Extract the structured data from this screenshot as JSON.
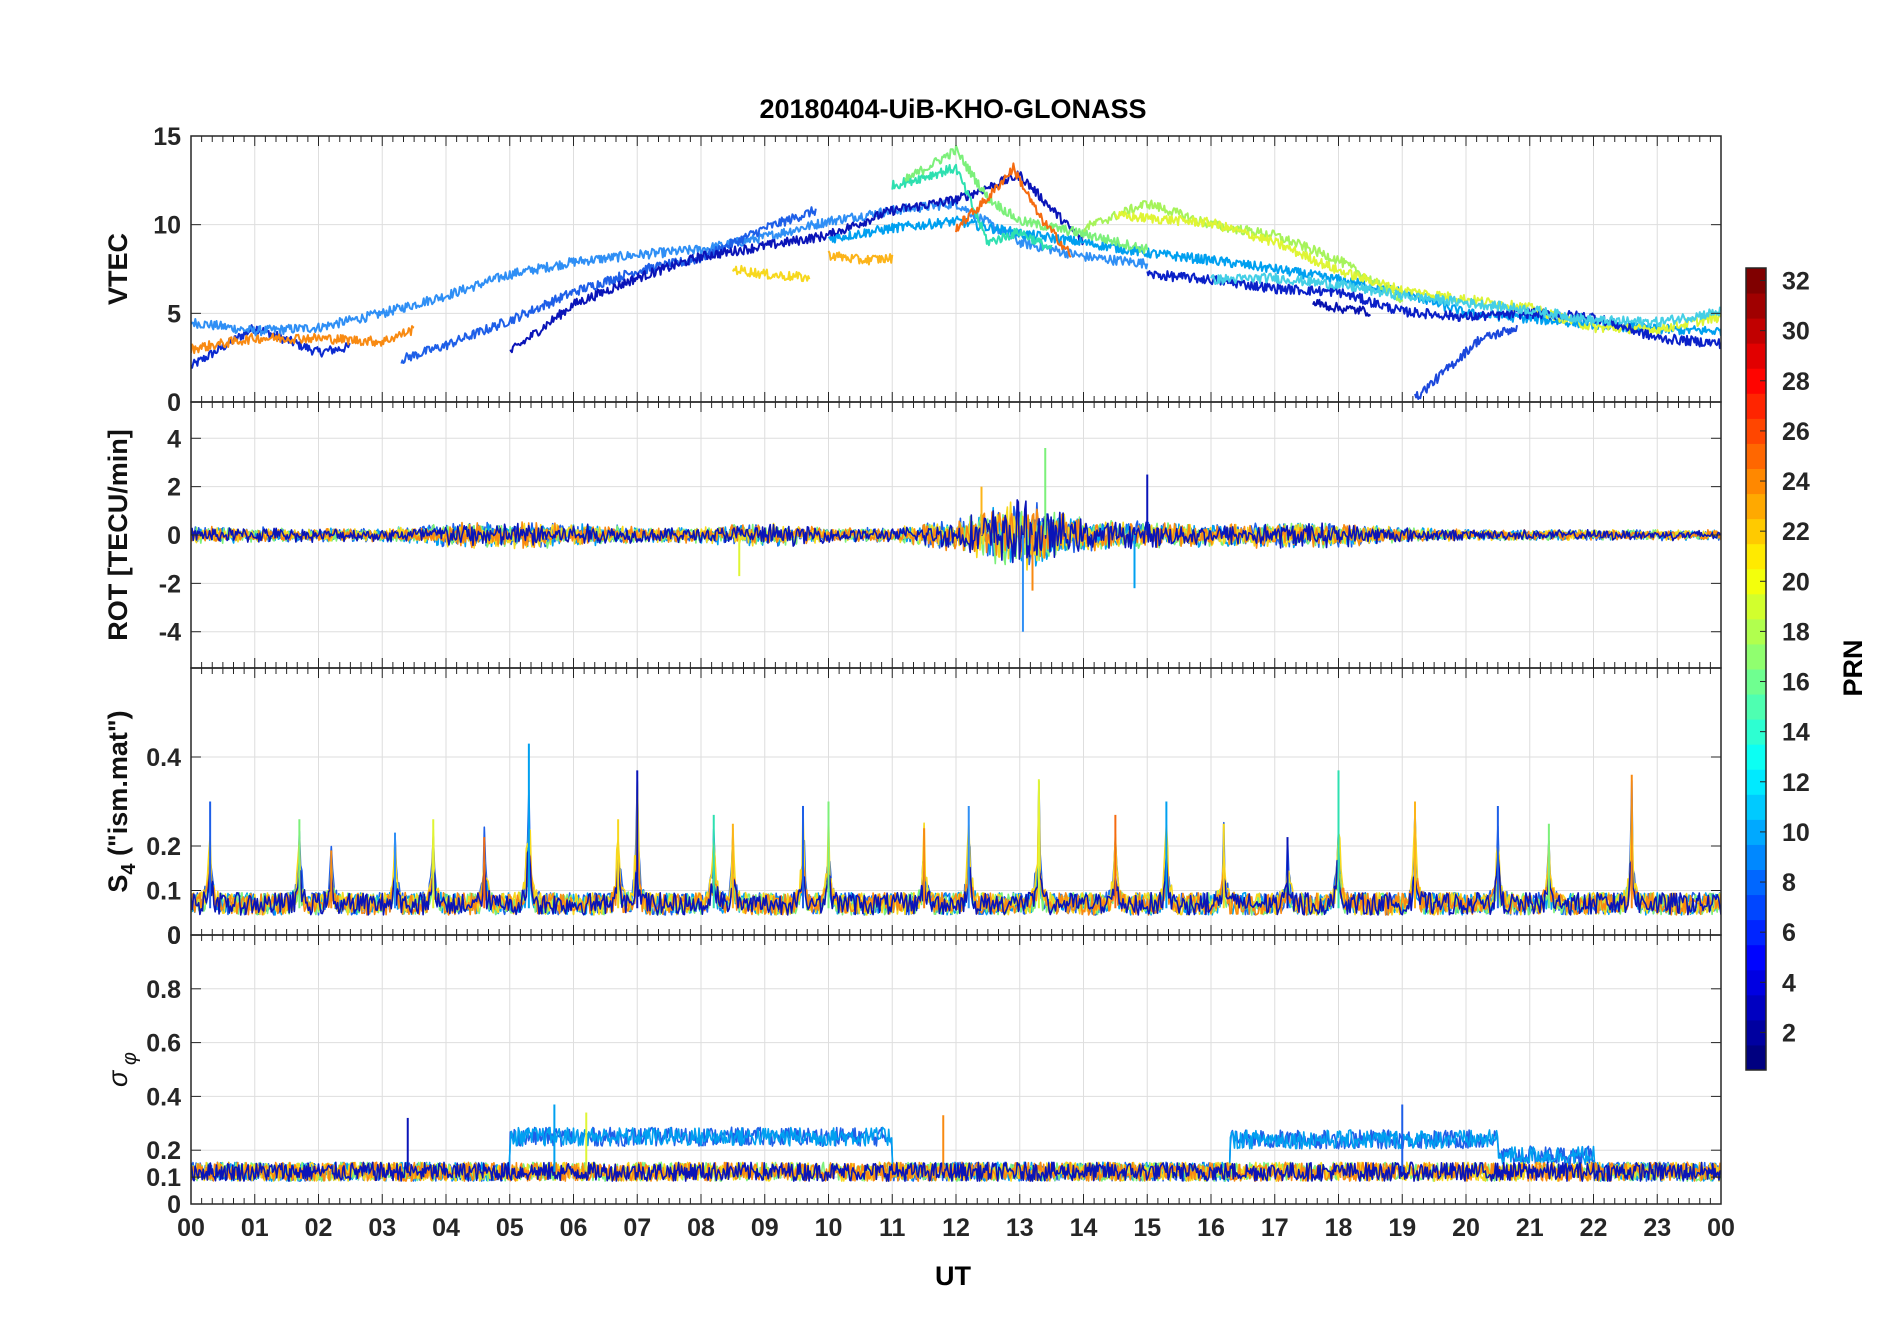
{
  "figure": {
    "title": "20180404-UiB-KHO-GLONASS",
    "xlabel": "UT",
    "x_ticks": [
      "00",
      "01",
      "02",
      "03",
      "04",
      "05",
      "06",
      "07",
      "08",
      "09",
      "10",
      "11",
      "12",
      "13",
      "14",
      "15",
      "16",
      "17",
      "18",
      "19",
      "20",
      "21",
      "22",
      "23",
      "00"
    ]
  },
  "colorbar": {
    "label": "PRN",
    "range": [
      1,
      32
    ],
    "colormap": "jet",
    "ticks": [
      "2",
      "4",
      "6",
      "8",
      "10",
      "12",
      "14",
      "16",
      "18",
      "20",
      "22",
      "24",
      "26",
      "28",
      "30",
      "32"
    ]
  },
  "chart_data": [
    {
      "type": "line",
      "panel": "VTEC",
      "ylabel": "VTEC",
      "xlim": [
        0,
        24
      ],
      "ylim": [
        0,
        15
      ],
      "y_ticks": [
        "0",
        "5",
        "10",
        "15"
      ],
      "grid": true,
      "series": [
        {
          "color": "#0b2ad0",
          "x": [
            0,
            1,
            2,
            2.5
          ],
          "y": [
            2.0,
            4.2,
            2.8,
            3.1
          ]
        },
        {
          "color": "#2f8ff5",
          "x": [
            0,
            1,
            2,
            3,
            4,
            5,
            6,
            7,
            8,
            9,
            10,
            11,
            12,
            13,
            14,
            15
          ],
          "y": [
            4.5,
            4.0,
            4.2,
            5.0,
            6.0,
            7.2,
            7.9,
            8.3,
            8.6,
            9.3,
            10.2,
            10.8,
            11.2,
            9.0,
            8.2,
            7.8
          ]
        },
        {
          "color": "#1e5fe8",
          "x": [
            3.3,
            4,
            5,
            6,
            7,
            8,
            9,
            9.8
          ],
          "y": [
            2.4,
            3.2,
            4.6,
            6.2,
            7.4,
            8.1,
            9.8,
            10.8
          ]
        },
        {
          "color": "#0a14b8",
          "x": [
            5,
            6,
            7,
            8,
            9,
            10,
            11,
            12,
            13,
            14
          ],
          "y": [
            2.8,
            5.5,
            7.0,
            8.2,
            8.8,
            9.4,
            10.8,
            11.4,
            12.8,
            9.0
          ]
        },
        {
          "color": "#00a0f0",
          "x": [
            10,
            11,
            12,
            13,
            14,
            15,
            16,
            17,
            18,
            19,
            20,
            21,
            22,
            23,
            24
          ],
          "y": [
            9.2,
            9.8,
            10.2,
            9.5,
            9.0,
            8.4,
            8.0,
            7.5,
            6.9,
            6.2,
            5.0,
            4.7,
            4.4,
            4.1,
            4.0
          ]
        },
        {
          "color": "#2ee0b0",
          "x": [
            11,
            12,
            12.5,
            13,
            13.5
          ],
          "y": [
            12.2,
            13.2,
            9.0,
            9.6,
            8.6
          ]
        },
        {
          "color": "#7cf07a",
          "x": [
            11.2,
            12,
            12.5,
            13,
            14,
            15
          ],
          "y": [
            12.5,
            14.2,
            11.5,
            10.2,
            9.5,
            8.6
          ]
        },
        {
          "color": "#a6f35a",
          "x": [
            14,
            15,
            16,
            17,
            18,
            19
          ],
          "y": [
            9.8,
            11.2,
            10.0,
            9.4,
            8.0,
            5.8
          ]
        },
        {
          "color": "#dff534",
          "x": [
            14.5,
            16,
            17,
            18,
            19,
            20,
            21,
            22,
            23,
            24
          ],
          "y": [
            10.5,
            10.1,
            9.0,
            7.4,
            6.3,
            5.8,
            5.3,
            4.2,
            4.1,
            4.8
          ]
        },
        {
          "color": "#f7d81e",
          "x": [
            8.5,
            9,
            9.7
          ],
          "y": [
            7.5,
            7.2,
            7.0
          ]
        },
        {
          "color": "#fcb41a",
          "x": [
            10,
            10.5,
            11
          ],
          "y": [
            8.3,
            8.0,
            8.1
          ]
        },
        {
          "color": "#f88a12",
          "x": [
            0,
            1,
            2,
            3,
            3.5
          ],
          "y": [
            3.0,
            3.6,
            3.6,
            3.4,
            4.1
          ]
        },
        {
          "color": "#f56b10",
          "x": [
            12,
            12.5,
            12.9,
            13.3,
            13.8
          ],
          "y": [
            9.8,
            11.5,
            13.2,
            10.5,
            8.3
          ]
        },
        {
          "color": "#0a20c8",
          "x": [
            15,
            16,
            17,
            18,
            19,
            20,
            21,
            22,
            23,
            24
          ],
          "y": [
            7.2,
            6.9,
            6.4,
            6.2,
            5.1,
            4.8,
            5.0,
            4.8,
            3.6,
            3.3
          ]
        },
        {
          "color": "#0812b0",
          "x": [
            17.6,
            18,
            18.5
          ],
          "y": [
            5.6,
            5.3,
            5.1
          ]
        },
        {
          "color": "#1c48dc",
          "x": [
            19.2,
            19.6,
            20.2,
            20.8
          ],
          "y": [
            0.2,
            1.5,
            3.5,
            4.2
          ]
        },
        {
          "color": "#44cfe6",
          "x": [
            16,
            17,
            18,
            19,
            20,
            21,
            22,
            23,
            24
          ],
          "y": [
            6.9,
            7.0,
            6.6,
            6.0,
            5.6,
            5.2,
            4.6,
            4.5,
            5.1
          ]
        }
      ]
    },
    {
      "type": "line",
      "panel": "ROT",
      "ylabel": "ROT [TECU/min]",
      "xlim": [
        0,
        24
      ],
      "ylim": [
        -5.5,
        5.5
      ],
      "y_ticks": [
        "-4",
        "-2",
        "0",
        "2",
        "4"
      ],
      "grid": true,
      "noise_envelope": {
        "x": [
          0,
          1,
          2,
          3,
          4,
          5,
          6,
          7,
          8,
          9,
          10,
          11,
          12,
          12.5,
          13,
          13.5,
          14,
          15,
          16,
          17,
          18,
          19,
          20,
          21,
          22,
          23,
          24
        ],
        "amplitude": [
          0.3,
          0.3,
          0.25,
          0.25,
          0.45,
          0.5,
          0.45,
          0.3,
          0.3,
          0.45,
          0.3,
          0.25,
          0.6,
          1.0,
          1.4,
          1.0,
          0.6,
          0.5,
          0.4,
          0.5,
          0.45,
          0.3,
          0.2,
          0.2,
          0.2,
          0.2,
          0.2
        ]
      },
      "peaks": [
        {
          "x": 13.05,
          "y": -4.0
        },
        {
          "x": 13.4,
          "y": 3.6
        },
        {
          "x": 12.4,
          "y": 2.0
        },
        {
          "x": 15.0,
          "y": 2.5
        },
        {
          "x": 14.8,
          "y": -2.2
        },
        {
          "x": 8.6,
          "y": -1.7
        },
        {
          "x": 13.2,
          "y": -2.3
        }
      ]
    },
    {
      "type": "line",
      "panel": "S4",
      "ylabel": "S4 (\"ism.mat\")",
      "xlim": [
        0,
        24
      ],
      "ylim": [
        0,
        0.6
      ],
      "y_ticks": [
        "0",
        "0",
        "0.1",
        "0.2",
        "0.4"
      ],
      "grid": true,
      "baseline": 0.06,
      "peaks": [
        {
          "x": 0.3,
          "y": 0.3
        },
        {
          "x": 1.7,
          "y": 0.26
        },
        {
          "x": 2.2,
          "y": 0.19
        },
        {
          "x": 3.2,
          "y": 0.23
        },
        {
          "x": 3.8,
          "y": 0.26
        },
        {
          "x": 4.6,
          "y": 0.22
        },
        {
          "x": 5.3,
          "y": 0.43
        },
        {
          "x": 6.7,
          "y": 0.26
        },
        {
          "x": 7.0,
          "y": 0.37
        },
        {
          "x": 8.2,
          "y": 0.27
        },
        {
          "x": 8.5,
          "y": 0.25
        },
        {
          "x": 9.6,
          "y": 0.29
        },
        {
          "x": 10.0,
          "y": 0.3
        },
        {
          "x": 11.5,
          "y": 0.24
        },
        {
          "x": 12.2,
          "y": 0.29
        },
        {
          "x": 13.3,
          "y": 0.35
        },
        {
          "x": 14.5,
          "y": 0.27
        },
        {
          "x": 15.3,
          "y": 0.3
        },
        {
          "x": 16.2,
          "y": 0.25
        },
        {
          "x": 17.2,
          "y": 0.22
        },
        {
          "x": 18.0,
          "y": 0.37
        },
        {
          "x": 19.2,
          "y": 0.3
        },
        {
          "x": 20.5,
          "y": 0.29
        },
        {
          "x": 21.3,
          "y": 0.25
        },
        {
          "x": 22.6,
          "y": 0.36
        }
      ]
    },
    {
      "type": "line",
      "panel": "sigma_phi",
      "ylabel": "σ φ",
      "xlim": [
        0,
        24
      ],
      "ylim": [
        0,
        1.0
      ],
      "y_ticks": [
        "0",
        "0.1",
        "0.2",
        "0.4",
        "0.6",
        "0.8"
      ],
      "grid": true,
      "baseline": 0.12,
      "elevated_segments": [
        {
          "x": [
            5.0,
            11.0
          ],
          "y": 0.25
        },
        {
          "x": [
            16.3,
            20.5
          ],
          "y": 0.24
        },
        {
          "x": [
            20.5,
            22.0
          ],
          "y": 0.18
        }
      ],
      "peaks": [
        {
          "x": 3.4,
          "y": 0.32
        },
        {
          "x": 5.7,
          "y": 0.37
        },
        {
          "x": 6.2,
          "y": 0.34
        },
        {
          "x": 11.8,
          "y": 0.33
        },
        {
          "x": 19.0,
          "y": 0.37
        }
      ]
    }
  ]
}
